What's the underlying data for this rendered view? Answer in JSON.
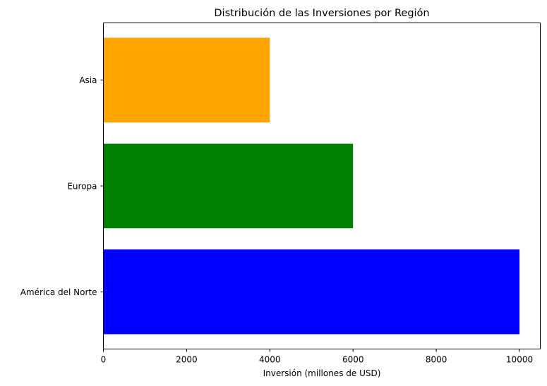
{
  "chart_data": {
    "type": "bar",
    "orientation": "horizontal",
    "title": "Distribución de las Inversiones por Región",
    "xlabel": "Inversión (millones de USD)",
    "ylabel": "",
    "categories": [
      "América del Norte",
      "Europa",
      "Asia"
    ],
    "values": [
      10000,
      6000,
      4000
    ],
    "colors": [
      "#0000ff",
      "#008000",
      "#ffa500"
    ],
    "xlim": [
      0,
      10500
    ],
    "xticks": [
      0,
      2000,
      4000,
      6000,
      8000,
      10000
    ],
    "grid": false,
    "legend": "none"
  }
}
